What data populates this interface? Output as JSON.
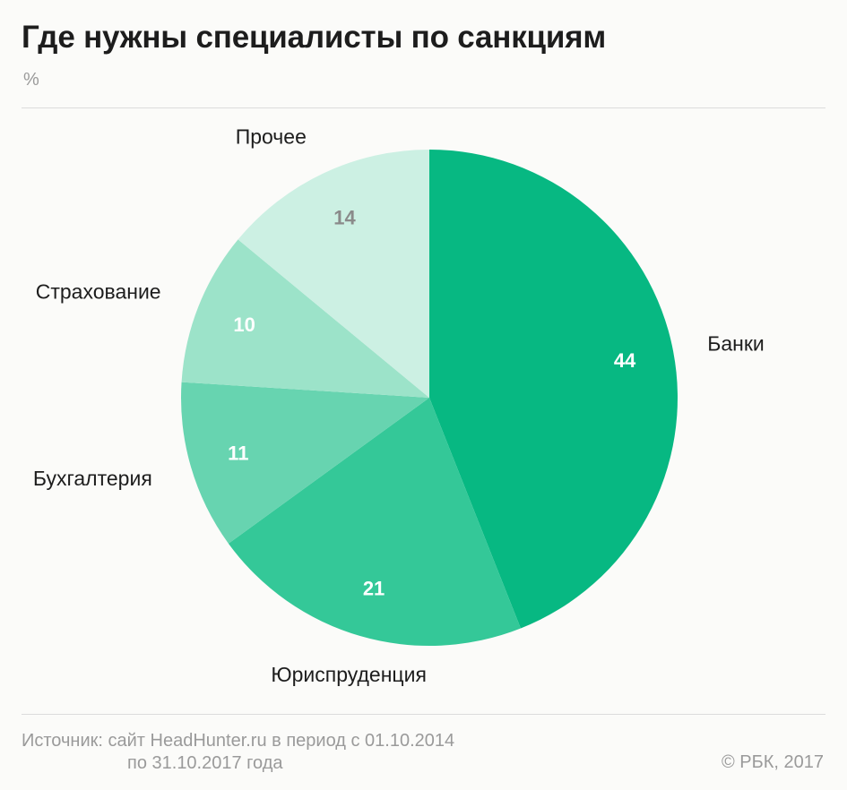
{
  "title": "Где нужны специалисты по санкциям",
  "unit": "%",
  "source": {
    "line1": "Источник: сайт HeadHunter.ru в период с 01.10.2014",
    "line2": "по 31.10.2017 года"
  },
  "credit": "© РБК, 2017",
  "chart_data": {
    "type": "pie",
    "unit": "%",
    "slices": [
      {
        "label": "Банки",
        "value": 44,
        "color": "#07b882",
        "label_color": "#ffffff"
      },
      {
        "label": "Юриспруденция",
        "value": 21,
        "color": "#34c898",
        "label_color": "#ffffff"
      },
      {
        "label": "Бухгалтерия",
        "value": 11,
        "color": "#67d4b0",
        "label_color": "#ffffff"
      },
      {
        "label": "Страхование",
        "value": 10,
        "color": "#9ce3c9",
        "label_color": "#ffffff"
      },
      {
        "label": "Прочее",
        "value": 14,
        "color": "#ccf0e3",
        "label_color": "#8a8a8a"
      }
    ]
  }
}
